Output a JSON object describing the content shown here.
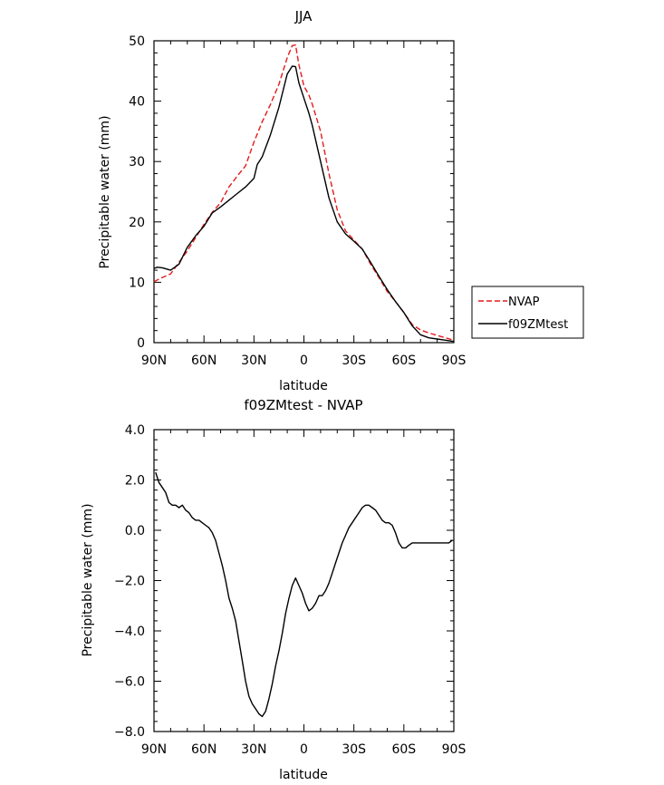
{
  "chart_data": [
    {
      "type": "line",
      "title": "JJA",
      "xlabel": "latitude",
      "ylabel": "Precipitable water (mm)",
      "xlim": [
        90,
        -90
      ],
      "ylim": [
        0,
        50
      ],
      "xticks": [
        {
          "value": 90,
          "label": "90N"
        },
        {
          "value": 60,
          "label": "60N"
        },
        {
          "value": 30,
          "label": "30N"
        },
        {
          "value": 0,
          "label": "0"
        },
        {
          "value": -30,
          "label": "30S"
        },
        {
          "value": -60,
          "label": "60S"
        },
        {
          "value": -90,
          "label": "90S"
        }
      ],
      "yticks": [
        {
          "value": 0,
          "label": "0"
        },
        {
          "value": 10,
          "label": "10"
        },
        {
          "value": 20,
          "label": "20"
        },
        {
          "value": 30,
          "label": "30"
        },
        {
          "value": 40,
          "label": "40"
        },
        {
          "value": 50,
          "label": "50"
        }
      ],
      "grid": false,
      "legend": {
        "placement": "right"
      },
      "series": [
        {
          "name": "NVAP",
          "color": "#e41a1c",
          "dash": "dashed",
          "x": [
            90,
            85,
            80,
            75,
            70,
            65,
            60,
            55,
            50,
            45,
            40,
            35,
            30,
            25,
            20,
            15,
            10,
            7,
            5,
            3,
            0,
            -3,
            -5,
            -10,
            -15,
            -20,
            -25,
            -30,
            -35,
            -40,
            -45,
            -50,
            -55,
            -60,
            -65,
            -70,
            -75,
            -80,
            -85,
            -90
          ],
          "y": [
            10.1,
            10.8,
            11.4,
            13.3,
            15.2,
            17.4,
            19.6,
            21.6,
            23.2,
            25.8,
            27.6,
            29.3,
            33.2,
            36.6,
            39.5,
            42.8,
            47.2,
            49.2,
            49.3,
            46.0,
            42.5,
            41.0,
            39.5,
            35.0,
            28.0,
            22.0,
            18.5,
            17.0,
            15.5,
            13.0,
            10.8,
            8.5,
            6.8,
            5.0,
            3.0,
            2.1,
            1.6,
            1.2,
            0.8,
            0.4
          ]
        },
        {
          "name": "f09ZMtest",
          "color": "#000000",
          "dash": "solid",
          "x": [
            90,
            88,
            85,
            80,
            75,
            70,
            65,
            60,
            55,
            50,
            45,
            40,
            35,
            30,
            28,
            25,
            20,
            15,
            10,
            7,
            5,
            3,
            0,
            -3,
            -5,
            -10,
            -15,
            -20,
            -25,
            -30,
            -35,
            -40,
            -45,
            -50,
            -55,
            -60,
            -65,
            -70,
            -75,
            -80,
            -85,
            -90
          ],
          "y": [
            12.3,
            12.5,
            12.4,
            12.0,
            13.0,
            15.8,
            17.7,
            19.3,
            21.5,
            22.5,
            23.6,
            24.7,
            25.8,
            27.2,
            29.5,
            30.8,
            34.5,
            39.0,
            44.5,
            45.8,
            45.7,
            43.0,
            40.5,
            38.0,
            36.0,
            30.0,
            24.0,
            20.0,
            18.0,
            16.8,
            15.5,
            13.3,
            11.0,
            8.8,
            6.8,
            5.0,
            2.8,
            1.3,
            0.8,
            0.6,
            0.4,
            0.2
          ]
        }
      ]
    },
    {
      "type": "line",
      "title": "f09ZMtest - NVAP",
      "xlabel": "latitude",
      "ylabel": "Precipitable water (mm)",
      "xlim": [
        90,
        -90
      ],
      "ylim": [
        -8,
        4
      ],
      "xticks": [
        {
          "value": 90,
          "label": "90N"
        },
        {
          "value": 60,
          "label": "60N"
        },
        {
          "value": 30,
          "label": "30N"
        },
        {
          "value": 0,
          "label": "0"
        },
        {
          "value": -30,
          "label": "30S"
        },
        {
          "value": -60,
          "label": "60S"
        },
        {
          "value": -90,
          "label": "90S"
        }
      ],
      "yticks": [
        {
          "value": 4,
          "label": "4.0"
        },
        {
          "value": 2,
          "label": "2.0"
        },
        {
          "value": 0,
          "label": "0.0"
        },
        {
          "value": -2,
          "label": "−2.0"
        },
        {
          "value": -4,
          "label": "−4.0"
        },
        {
          "value": -6,
          "label": "−6.0"
        },
        {
          "value": -8,
          "label": "−8.0"
        }
      ],
      "grid": false,
      "series": [
        {
          "color": "#000000",
          "dash": "solid",
          "x": [
            89,
            87,
            85,
            83,
            81,
            79,
            77,
            75,
            73,
            71,
            69,
            67,
            65,
            63,
            61,
            59,
            57,
            55,
            53,
            51,
            49,
            47,
            45,
            43,
            41,
            39,
            37,
            35,
            33,
            31,
            29,
            27,
            25,
            23,
            21,
            19,
            17,
            15,
            13,
            11,
            9,
            7,
            5,
            3,
            1,
            -1,
            -3,
            -5,
            -7,
            -9,
            -11,
            -13,
            -15,
            -17,
            -19,
            -21,
            -23,
            -25,
            -27,
            -29,
            -31,
            -33,
            -35,
            -37,
            -39,
            -41,
            -43,
            -45,
            -47,
            -49,
            -51,
            -53,
            -55,
            -57,
            -59,
            -61,
            -63,
            -65,
            -67,
            -69,
            -71,
            -73,
            -75,
            -77,
            -79,
            -81,
            -83,
            -85,
            -87,
            -89
          ],
          "y": [
            2.3,
            1.9,
            1.7,
            1.5,
            1.1,
            1.0,
            1.0,
            0.9,
            1.0,
            0.8,
            0.7,
            0.5,
            0.4,
            0.4,
            0.3,
            0.2,
            0.1,
            -0.1,
            -0.4,
            -0.9,
            -1.4,
            -2.0,
            -2.7,
            -3.1,
            -3.6,
            -4.4,
            -5.2,
            -6.0,
            -6.6,
            -6.9,
            -7.1,
            -7.3,
            -7.4,
            -7.2,
            -6.7,
            -6.1,
            -5.4,
            -4.8,
            -4.1,
            -3.3,
            -2.7,
            -2.2,
            -1.9,
            -2.2,
            -2.5,
            -2.9,
            -3.2,
            -3.1,
            -2.9,
            -2.6,
            -2.6,
            -2.4,
            -2.1,
            -1.7,
            -1.3,
            -0.9,
            -0.5,
            -0.2,
            0.1,
            0.3,
            0.5,
            0.7,
            0.9,
            1.0,
            1.0,
            0.9,
            0.8,
            0.6,
            0.4,
            0.3,
            0.3,
            0.2,
            -0.1,
            -0.5,
            -0.7,
            -0.7,
            -0.6,
            -0.5,
            -0.5,
            -0.5,
            -0.5,
            -0.5,
            -0.5,
            -0.5,
            -0.5,
            -0.5,
            -0.5,
            -0.5,
            -0.5,
            -0.4
          ]
        }
      ]
    }
  ]
}
